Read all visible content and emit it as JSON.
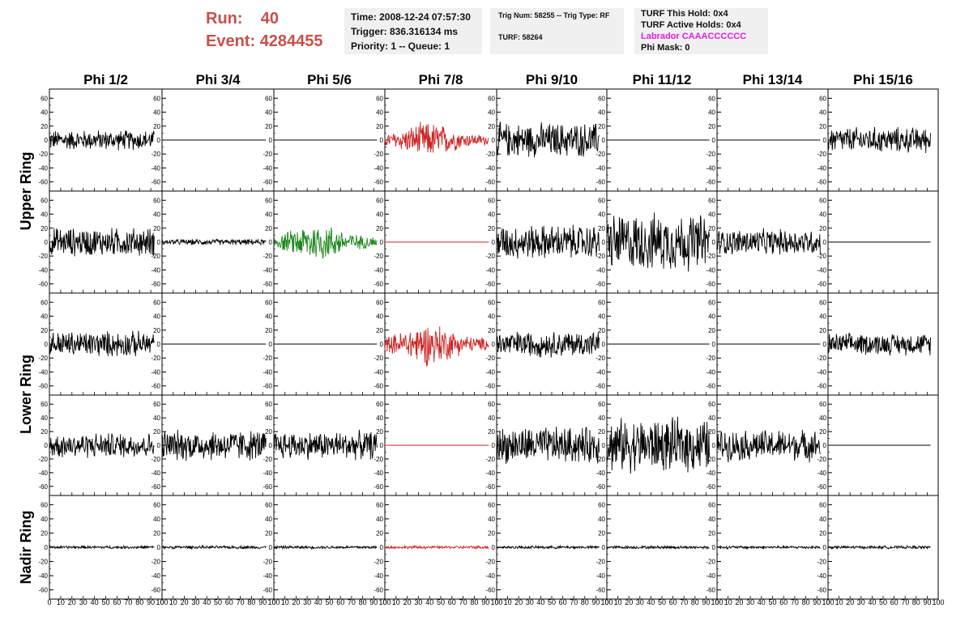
{
  "header": {
    "run_label": "Run:",
    "run_value": "40",
    "event_label": "Event:",
    "event_value": "4284455"
  },
  "info_box_1": {
    "time": "Time: 2008-12-24 07:57:30",
    "trigger": "Trigger: 836.316134 ms",
    "priority": "Priority: 1 -- Queue: 1"
  },
  "info_box_2": {
    "trig": "Trig Num: 58255 -- Trig Type: RF",
    "turf": "TURF: 58264"
  },
  "info_box_3": {
    "this_hold": "TURF This Hold: 0x4",
    "active_holds": "TURF Active Holds: 0x4",
    "labrador": "Labrador CAAACCCCCC",
    "phi_mask": "Phi Mask: 0"
  },
  "colors": {
    "header_red": "#c8504a",
    "normal": "#000000",
    "triggered_red": "#cc2222",
    "triggered_green": "#228822",
    "labrador": "#e020e0",
    "panel_bg": "#f0f0f0"
  },
  "chart_data": {
    "type": "line",
    "columns": [
      "Phi 1/2",
      "Phi 3/4",
      "Phi 5/6",
      "Phi 7/8",
      "Phi 9/10",
      "Phi 11/12",
      "Phi 13/14",
      "Phi 15/16"
    ],
    "ring_labels": [
      {
        "name": "Upper Ring",
        "rows": [
          0,
          1
        ]
      },
      {
        "name": "Lower Ring",
        "rows": [
          2,
          3
        ]
      },
      {
        "name": "Nadir Ring",
        "rows": [
          4
        ]
      }
    ],
    "ylim": [
      -65,
      65
    ],
    "yticks": [
      60,
      40,
      20,
      0,
      -20,
      -40,
      -60
    ],
    "ytick_labels": [
      "60",
      "40",
      "20",
      "0",
      "-20",
      "-40",
      "-60"
    ],
    "xlim": [
      0,
      100
    ],
    "xticks": [
      0,
      10,
      20,
      30,
      40,
      50,
      60,
      70,
      80,
      90,
      100
    ],
    "xtick_labels": [
      "0",
      "10",
      "20",
      "30",
      "40",
      "50",
      "60",
      "70",
      "80",
      "90",
      "100"
    ],
    "trace_length_ns": 93,
    "panels": [
      [
        {
          "state": "active",
          "amp": 14,
          "color": "normal"
        },
        {
          "state": "flat",
          "amp": 0,
          "color": "normal"
        },
        {
          "state": "flat",
          "amp": 0,
          "color": "normal"
        },
        {
          "state": "active",
          "amp": 20,
          "color": "triggered_red",
          "burst": true
        },
        {
          "state": "active",
          "amp": 24,
          "color": "normal"
        },
        {
          "state": "flat",
          "amp": 0,
          "color": "normal"
        },
        {
          "state": "flat",
          "amp": 0,
          "color": "normal"
        },
        {
          "state": "active",
          "amp": 18,
          "color": "normal"
        }
      ],
      [
        {
          "state": "active",
          "amp": 20,
          "color": "normal"
        },
        {
          "state": "active",
          "amp": 4,
          "color": "normal"
        },
        {
          "state": "active",
          "amp": 22,
          "color": "triggered_green",
          "burst": true
        },
        {
          "state": "flat",
          "amp": 0,
          "color": "triggered_red"
        },
        {
          "state": "active",
          "amp": 24,
          "color": "normal"
        },
        {
          "state": "active",
          "amp": 40,
          "color": "normal"
        },
        {
          "state": "active",
          "amp": 18,
          "color": "normal"
        },
        {
          "state": "flat",
          "amp": 0,
          "color": "normal"
        }
      ],
      [
        {
          "state": "active",
          "amp": 18,
          "color": "normal"
        },
        {
          "state": "flat",
          "amp": 0,
          "color": "normal"
        },
        {
          "state": "flat",
          "amp": 0,
          "color": "normal"
        },
        {
          "state": "active",
          "amp": 24,
          "color": "triggered_red",
          "burst": true
        },
        {
          "state": "active",
          "amp": 18,
          "color": "normal"
        },
        {
          "state": "flat",
          "amp": 0,
          "color": "normal"
        },
        {
          "state": "flat",
          "amp": 0,
          "color": "normal"
        },
        {
          "state": "active",
          "amp": 15,
          "color": "normal"
        }
      ],
      [
        {
          "state": "active",
          "amp": 18,
          "color": "normal"
        },
        {
          "state": "active",
          "amp": 22,
          "color": "normal"
        },
        {
          "state": "active",
          "amp": 20,
          "color": "normal"
        },
        {
          "state": "flat",
          "amp": 0,
          "color": "triggered_red"
        },
        {
          "state": "active",
          "amp": 26,
          "color": "normal"
        },
        {
          "state": "active",
          "amp": 38,
          "color": "normal"
        },
        {
          "state": "active",
          "amp": 22,
          "color": "normal"
        },
        {
          "state": "flat",
          "amp": 0,
          "color": "normal"
        }
      ],
      [
        {
          "state": "active",
          "amp": 2,
          "color": "normal"
        },
        {
          "state": "active",
          "amp": 2,
          "color": "normal"
        },
        {
          "state": "active",
          "amp": 2,
          "color": "normal"
        },
        {
          "state": "active",
          "amp": 2,
          "color": "triggered_red"
        },
        {
          "state": "active",
          "amp": 2,
          "color": "normal"
        },
        {
          "state": "active",
          "amp": 2,
          "color": "normal"
        },
        {
          "state": "active",
          "amp": 2,
          "color": "normal"
        },
        {
          "state": "active",
          "amp": 2,
          "color": "normal"
        }
      ]
    ]
  }
}
